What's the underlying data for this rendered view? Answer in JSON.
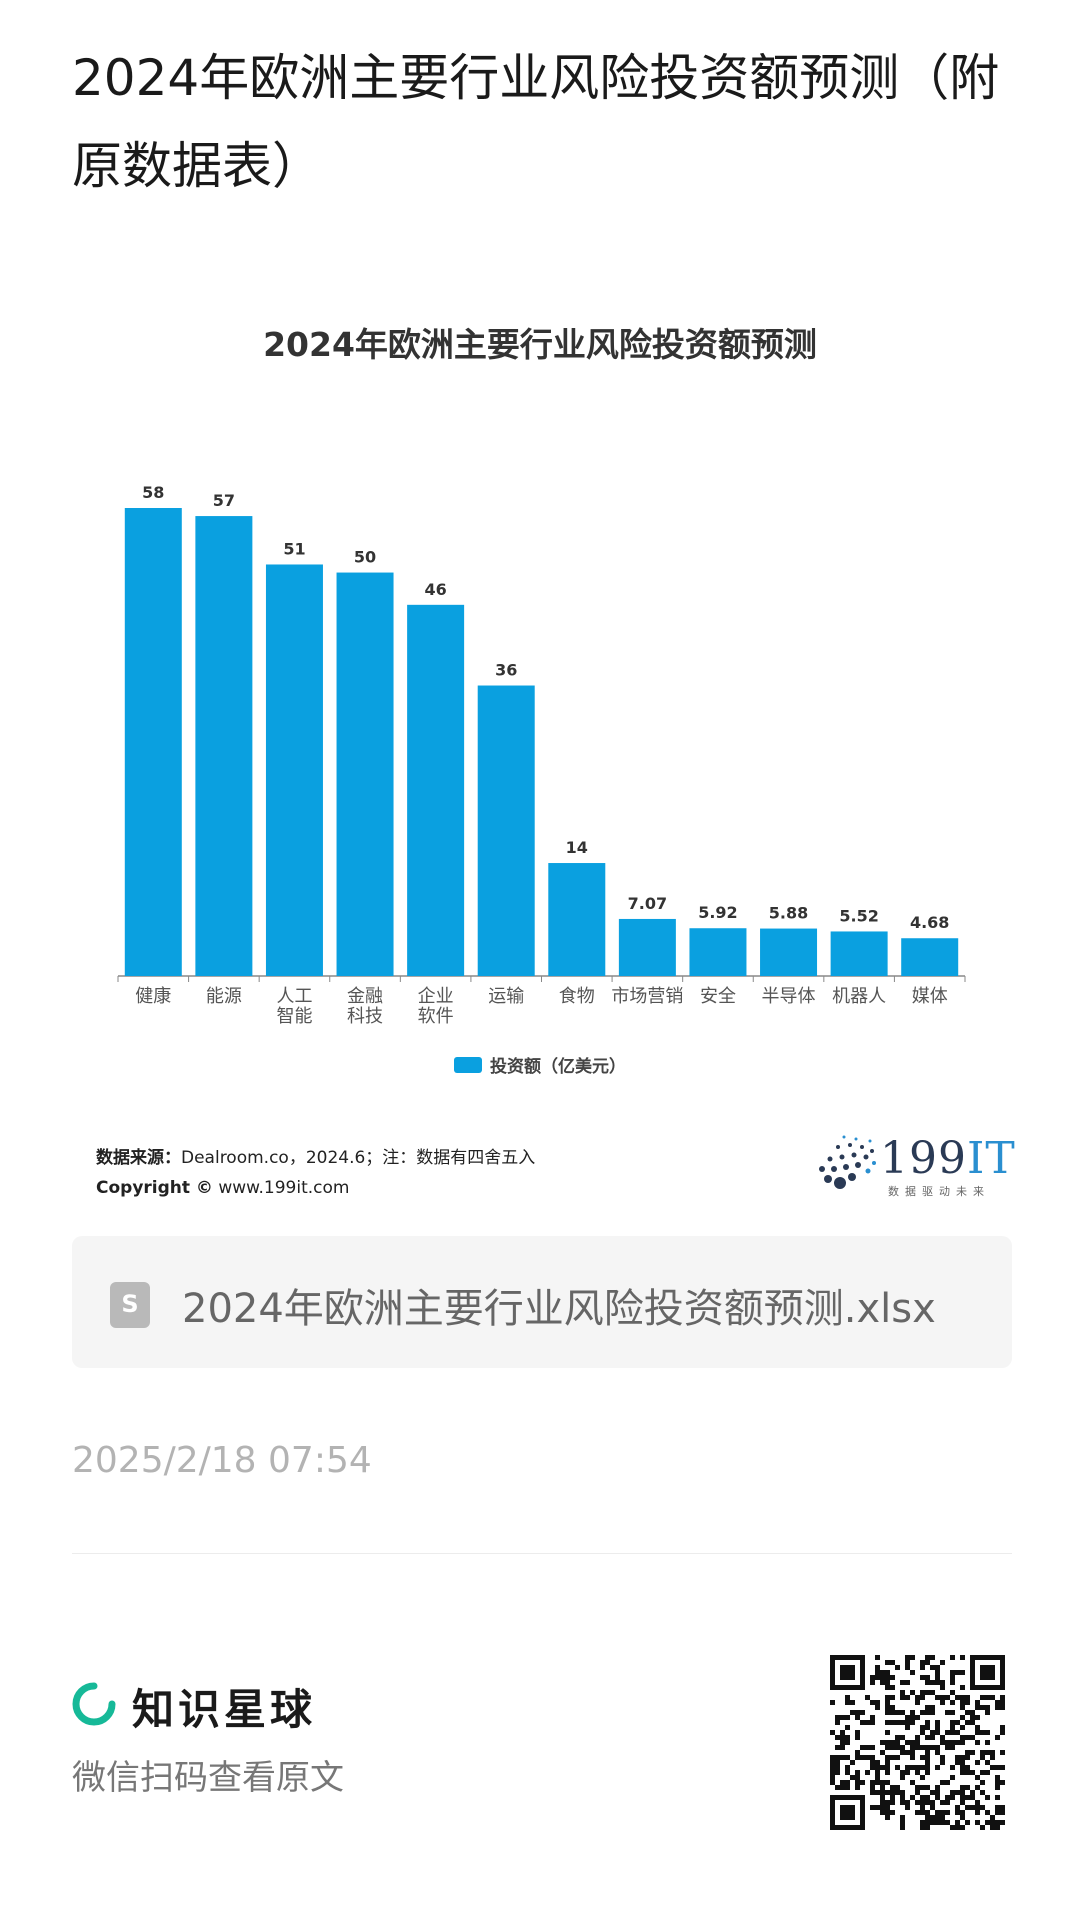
{
  "page": {
    "title": "2024年欧洲主要行业风险投资额预测（附原数据表）"
  },
  "chart_data": {
    "type": "bar",
    "title": "2024年欧洲主要行业风险投资额预测",
    "categories": [
      "健康",
      "能源",
      "人工智能",
      "金融科技",
      "企业软件",
      "运输",
      "食物",
      "市场营销",
      "安全",
      "半导体",
      "机器人",
      "媒体"
    ],
    "category_lines": [
      [
        "健康"
      ],
      [
        "能源"
      ],
      [
        "人工",
        "智能"
      ],
      [
        "金融",
        "科技"
      ],
      [
        "企业",
        "软件"
      ],
      [
        "运输"
      ],
      [
        "食物"
      ],
      [
        "市场营销"
      ],
      [
        "安全"
      ],
      [
        "半导体"
      ],
      [
        "机器人"
      ],
      [
        "媒体"
      ]
    ],
    "series": [
      {
        "name": "投资额（亿美元）",
        "values": [
          58,
          57,
          51,
          50,
          46,
          36,
          14,
          7.07,
          5.92,
          5.88,
          5.52,
          4.68
        ],
        "color": "#0aa0e0"
      }
    ],
    "value_labels": [
      "58",
      "57",
      "51",
      "50",
      "46",
      "36",
      "14",
      "7.07",
      "5.92",
      "5.88",
      "5.52",
      "4.68"
    ],
    "ylim": [
      0,
      58
    ],
    "grid": false,
    "legend": "bottom-center"
  },
  "source": {
    "label": "数据来源：",
    "text": "Dealroom.co，2024.6；注：数据有四舍五入",
    "copyright_label": "Copyright ©",
    "copyright_site": "www.199it.com"
  },
  "logo": {
    "text": "199",
    "text_it": "IT",
    "tagline": "数据驱动未来"
  },
  "file": {
    "icon": "spreadsheet-icon",
    "icon_letter": "S",
    "name": "2024年欧洲主要行业风险投资额预测.xlsx"
  },
  "meta": {
    "timestamp": "2025/2/18 07:54"
  },
  "footer": {
    "brand": "知识星球",
    "scan_hint": "微信扫码查看原文",
    "brand_color": "#16b998"
  }
}
